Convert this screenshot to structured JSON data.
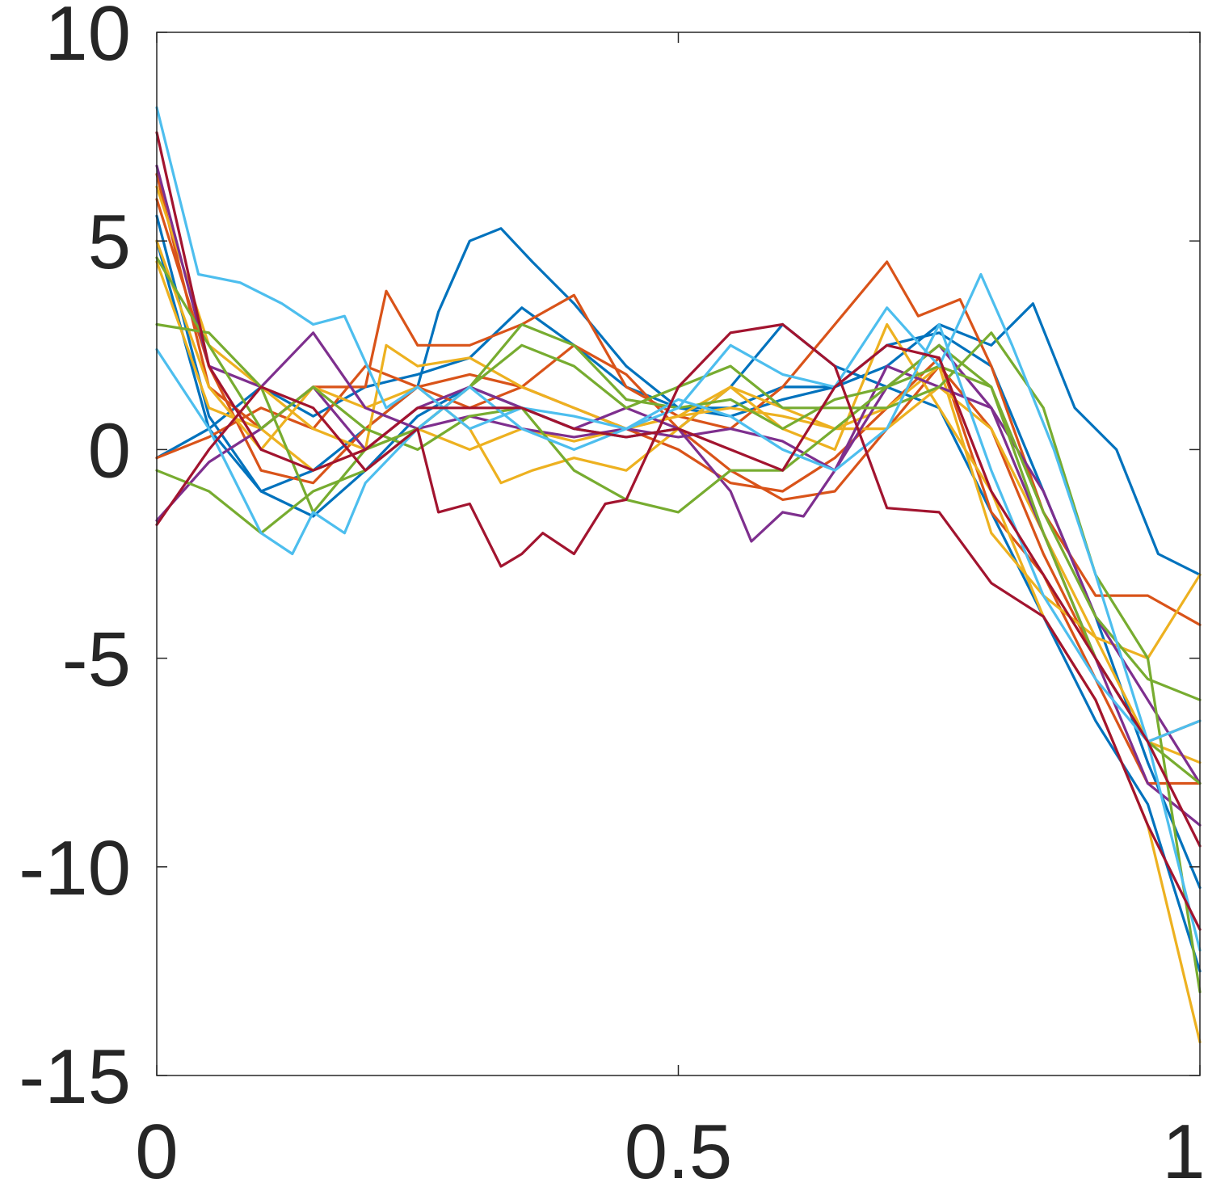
{
  "chart_data": {
    "type": "line",
    "title": "",
    "xlabel": "",
    "ylabel": "",
    "xlim": [
      0,
      1
    ],
    "ylim": [
      -15,
      10
    ],
    "xticks": [
      0,
      0.5,
      1
    ],
    "xtick_labels": [
      "0",
      "0.5",
      "1"
    ],
    "yticks": [
      -15,
      -10,
      -5,
      0,
      5,
      10
    ],
    "ytick_labels": [
      "-15",
      "-10",
      "-5",
      "0",
      "5",
      "10"
    ],
    "grid": false,
    "box": true,
    "colors": [
      "#0072BD",
      "#D95319",
      "#EDB120",
      "#7E2F8E",
      "#77AC30",
      "#4DBEEE",
      "#A2142F"
    ],
    "series": [
      {
        "color": "#0072BD",
        "x": [
          0,
          0.05,
          0.1,
          0.15,
          0.2,
          0.25,
          0.27,
          0.3,
          0.33,
          0.36,
          0.4,
          0.45,
          0.5,
          0.55,
          0.6,
          0.65,
          0.7,
          0.75,
          0.8,
          0.84,
          0.88,
          0.92,
          0.96,
          1
        ],
        "y": [
          5.0,
          0.5,
          -1.0,
          -0.5,
          0.5,
          1.5,
          3.3,
          5.0,
          5.3,
          4.5,
          3.5,
          2.0,
          1.0,
          1.0,
          1.5,
          1.5,
          2.0,
          3.0,
          2.5,
          3.5,
          1.0,
          0.0,
          -2.5,
          -3.0
        ]
      },
      {
        "color": "#0072BD",
        "x": [
          0,
          0.05,
          0.1,
          0.15,
          0.2,
          0.25,
          0.3,
          0.35,
          0.4,
          0.45,
          0.5,
          0.55,
          0.6,
          0.65,
          0.7,
          0.75,
          0.8,
          0.85,
          0.9,
          0.95,
          1
        ],
        "y": [
          -0.2,
          0.5,
          1.5,
          0.8,
          1.5,
          1.8,
          2.2,
          3.4,
          2.5,
          1.5,
          1.0,
          0.8,
          1.2,
          1.5,
          2.5,
          2.8,
          2.0,
          -1.0,
          -4.0,
          -7.5,
          -10.5
        ]
      },
      {
        "color": "#0072BD",
        "x": [
          0,
          0.05,
          0.1,
          0.15,
          0.2,
          0.25,
          0.3,
          0.35,
          0.4,
          0.45,
          0.5,
          0.55,
          0.6,
          0.65,
          0.7,
          0.75,
          0.8,
          0.85,
          0.9,
          0.95,
          1
        ],
        "y": [
          5.6,
          0.8,
          -1.0,
          -1.6,
          -0.5,
          0.8,
          1.5,
          1.0,
          0.5,
          0.3,
          0.5,
          1.5,
          3.0,
          2.0,
          1.5,
          1.0,
          -1.5,
          -4.0,
          -6.5,
          -8.5,
          -12.5
        ]
      },
      {
        "color": "#D95319",
        "x": [
          0,
          0.05,
          0.1,
          0.15,
          0.2,
          0.22,
          0.25,
          0.3,
          0.35,
          0.4,
          0.45,
          0.5,
          0.55,
          0.6,
          0.65,
          0.7,
          0.73,
          0.77,
          0.8,
          0.85,
          0.9,
          0.95,
          1
        ],
        "y": [
          6.6,
          1.5,
          0.5,
          1.5,
          1.5,
          3.8,
          2.5,
          2.5,
          3.0,
          3.7,
          1.5,
          0.8,
          0.5,
          1.5,
          3.0,
          4.5,
          3.2,
          3.6,
          2.0,
          -1.5,
          -3.5,
          -3.5,
          -4.2
        ]
      },
      {
        "color": "#D95319",
        "x": [
          0,
          0.05,
          0.1,
          0.15,
          0.2,
          0.25,
          0.3,
          0.35,
          0.4,
          0.45,
          0.5,
          0.55,
          0.6,
          0.65,
          0.7,
          0.75,
          0.8,
          0.85,
          0.9,
          0.95,
          1
        ],
        "y": [
          6.0,
          2.0,
          -0.5,
          -0.8,
          0.5,
          1.5,
          1.0,
          1.5,
          2.5,
          1.8,
          0.5,
          -0.5,
          -1.2,
          -1.0,
          0.5,
          2.0,
          0.5,
          -2.5,
          -5.0,
          -7.0,
          -6.5
        ]
      },
      {
        "color": "#D95319",
        "x": [
          0,
          0.05,
          0.1,
          0.15,
          0.2,
          0.25,
          0.3,
          0.35,
          0.4,
          0.45,
          0.5,
          0.55,
          0.6,
          0.65,
          0.7,
          0.75,
          0.8,
          0.85,
          0.9,
          0.95,
          1
        ],
        "y": [
          -0.2,
          0.3,
          1.0,
          0.5,
          2.0,
          1.5,
          1.8,
          1.5,
          1.0,
          0.5,
          0.0,
          -0.8,
          -1.0,
          -0.2,
          1.0,
          2.2,
          -1.5,
          -3.0,
          -5.5,
          -8.0,
          -8.0
        ]
      },
      {
        "color": "#EDB120",
        "x": [
          0,
          0.05,
          0.1,
          0.15,
          0.2,
          0.25,
          0.3,
          0.33,
          0.36,
          0.4,
          0.45,
          0.5,
          0.55,
          0.6,
          0.65,
          0.7,
          0.75,
          0.8,
          0.85,
          0.9,
          0.95,
          1
        ],
        "y": [
          5.0,
          1.5,
          0.0,
          1.5,
          1.0,
          1.5,
          0.5,
          -0.8,
          -0.5,
          -0.2,
          -0.5,
          0.5,
          1.5,
          0.5,
          0.0,
          3.0,
          1.0,
          -1.0,
          -4.0,
          -6.0,
          -9.0,
          -14.2
        ]
      },
      {
        "color": "#EDB120",
        "x": [
          0,
          0.05,
          0.1,
          0.15,
          0.2,
          0.25,
          0.3,
          0.35,
          0.4,
          0.45,
          0.5,
          0.55,
          0.6,
          0.65,
          0.7,
          0.75,
          0.8,
          0.85,
          0.9,
          0.95,
          1
        ],
        "y": [
          4.5,
          1.0,
          0.5,
          -0.5,
          0.0,
          0.5,
          0.0,
          0.5,
          0.2,
          0.5,
          0.8,
          1.0,
          0.8,
          0.5,
          1.0,
          2.0,
          -2.0,
          -3.5,
          -4.5,
          -5.0,
          -3.0
        ]
      },
      {
        "color": "#EDB120",
        "x": [
          0,
          0.05,
          0.1,
          0.15,
          0.2,
          0.22,
          0.25,
          0.3,
          0.35,
          0.4,
          0.45,
          0.5,
          0.55,
          0.6,
          0.65,
          0.7,
          0.75,
          0.8,
          0.85,
          0.9,
          0.95,
          1
        ],
        "y": [
          6.3,
          2.5,
          1.5,
          0.5,
          0.0,
          2.5,
          2.0,
          2.2,
          1.5,
          1.0,
          0.5,
          0.8,
          1.5,
          1.0,
          0.5,
          0.5,
          1.5,
          0.5,
          -2.0,
          -4.5,
          -7.0,
          -7.5
        ]
      },
      {
        "color": "#7E2F8E",
        "x": [
          0,
          0.05,
          0.1,
          0.15,
          0.2,
          0.25,
          0.3,
          0.35,
          0.4,
          0.45,
          0.5,
          0.55,
          0.57,
          0.6,
          0.62,
          0.65,
          0.7,
          0.75,
          0.8,
          0.85,
          0.9,
          0.95,
          1
        ],
        "y": [
          -1.7,
          -0.3,
          0.5,
          1.5,
          0.0,
          1.0,
          1.5,
          1.0,
          0.5,
          1.0,
          0.5,
          -1.0,
          -2.2,
          -1.5,
          -1.6,
          -0.5,
          2.0,
          1.5,
          1.0,
          -2.0,
          -5.0,
          -8.0,
          -9.0
        ]
      },
      {
        "color": "#7E2F8E",
        "x": [
          0,
          0.05,
          0.1,
          0.15,
          0.2,
          0.25,
          0.3,
          0.35,
          0.4,
          0.45,
          0.5,
          0.55,
          0.6,
          0.65,
          0.7,
          0.75,
          0.8,
          0.85,
          0.9,
          0.95,
          1
        ],
        "y": [
          6.8,
          2.0,
          1.5,
          2.8,
          1.0,
          0.5,
          0.8,
          0.5,
          0.3,
          0.5,
          0.3,
          0.5,
          0.2,
          -0.5,
          1.5,
          2.5,
          1.0,
          -1.0,
          -4.0,
          -6.0,
          -8.0
        ]
      },
      {
        "color": "#77AC30",
        "x": [
          0,
          0.05,
          0.1,
          0.15,
          0.2,
          0.25,
          0.3,
          0.35,
          0.4,
          0.45,
          0.5,
          0.55,
          0.6,
          0.65,
          0.7,
          0.75,
          0.8,
          0.85,
          0.9,
          0.95,
          1
        ],
        "y": [
          3.0,
          2.8,
          1.5,
          -1.5,
          0.0,
          0.5,
          1.5,
          2.5,
          2.0,
          1.0,
          1.5,
          2.0,
          1.0,
          1.0,
          1.0,
          1.5,
          2.8,
          1.0,
          -3.0,
          -5.0,
          -13.0
        ]
      },
      {
        "color": "#77AC30",
        "x": [
          0,
          0.05,
          0.1,
          0.15,
          0.2,
          0.25,
          0.3,
          0.35,
          0.4,
          0.45,
          0.5,
          0.55,
          0.6,
          0.65,
          0.7,
          0.75,
          0.8,
          0.85,
          0.9,
          0.95,
          1
        ],
        "y": [
          4.6,
          2.5,
          0.5,
          1.5,
          0.5,
          0.0,
          0.8,
          1.0,
          -0.5,
          -1.2,
          -1.5,
          -0.5,
          -0.5,
          0.5,
          1.5,
          2.0,
          1.5,
          -1.5,
          -4.0,
          -5.5,
          -6.0
        ]
      },
      {
        "color": "#77AC30",
        "x": [
          0,
          0.05,
          0.1,
          0.15,
          0.2,
          0.25,
          0.3,
          0.35,
          0.4,
          0.45,
          0.5,
          0.55,
          0.6,
          0.65,
          0.7,
          0.75,
          0.8,
          0.85,
          0.9,
          0.95,
          1
        ],
        "y": [
          -0.5,
          -1.0,
          -2.0,
          -1.0,
          -0.5,
          0.5,
          1.5,
          3.0,
          2.5,
          1.2,
          1.0,
          1.2,
          0.5,
          1.2,
          1.5,
          2.5,
          1.5,
          -2.0,
          -5.0,
          -7.0,
          -8.0
        ]
      },
      {
        "color": "#4DBEEE",
        "x": [
          0,
          0.04,
          0.08,
          0.12,
          0.15,
          0.18,
          0.22,
          0.25,
          0.3,
          0.35,
          0.4,
          0.45,
          0.5,
          0.55,
          0.6,
          0.65,
          0.7,
          0.75,
          0.79,
          0.82,
          0.86,
          0.9,
          0.95,
          1
        ],
        "y": [
          8.2,
          4.2,
          4.0,
          3.5,
          3.0,
          3.2,
          1.0,
          1.5,
          0.5,
          1.0,
          0.8,
          0.5,
          1.0,
          2.5,
          1.8,
          1.5,
          3.4,
          2.0,
          4.2,
          2.5,
          0.0,
          -3.0,
          -7.0,
          -12.0
        ]
      },
      {
        "color": "#4DBEEE",
        "x": [
          0,
          0.05,
          0.1,
          0.13,
          0.15,
          0.18,
          0.2,
          0.25,
          0.3,
          0.35,
          0.4,
          0.45,
          0.5,
          0.55,
          0.6,
          0.65,
          0.7,
          0.75,
          0.8,
          0.85,
          0.9,
          0.95,
          1
        ],
        "y": [
          2.4,
          0.5,
          -2.0,
          -2.5,
          -1.5,
          -2.0,
          -0.8,
          0.5,
          1.5,
          0.5,
          0.0,
          0.5,
          1.2,
          0.8,
          0.0,
          -0.5,
          0.5,
          3.0,
          -0.5,
          -3.5,
          -5.5,
          -7.0,
          -6.5
        ]
      },
      {
        "color": "#A2142F",
        "x": [
          0,
          0.05,
          0.1,
          0.15,
          0.2,
          0.25,
          0.27,
          0.3,
          0.33,
          0.35,
          0.37,
          0.4,
          0.43,
          0.45,
          0.5,
          0.55,
          0.6,
          0.65,
          0.7,
          0.75,
          0.8,
          0.85,
          0.9,
          0.95,
          1
        ],
        "y": [
          -1.8,
          0.0,
          1.5,
          1.0,
          -0.5,
          0.5,
          -1.5,
          -1.3,
          -2.8,
          -2.5,
          -2.0,
          -2.5,
          -1.3,
          -1.2,
          1.5,
          2.8,
          3.0,
          2.0,
          -1.4,
          -1.5,
          -3.2,
          -4.0,
          -6.0,
          -9.0,
          -11.5
        ]
      },
      {
        "color": "#A2142F",
        "x": [
          0,
          0.05,
          0.1,
          0.15,
          0.2,
          0.25,
          0.3,
          0.35,
          0.4,
          0.45,
          0.5,
          0.55,
          0.6,
          0.65,
          0.7,
          0.75,
          0.8,
          0.85,
          0.9,
          0.95,
          1
        ],
        "y": [
          7.6,
          2.0,
          0.0,
          -0.5,
          0.0,
          1.0,
          1.0,
          1.0,
          0.5,
          0.3,
          0.5,
          0.0,
          -0.5,
          1.5,
          2.5,
          2.2,
          -1.0,
          -3.0,
          -5.0,
          -7.0,
          -9.5
        ]
      }
    ]
  }
}
